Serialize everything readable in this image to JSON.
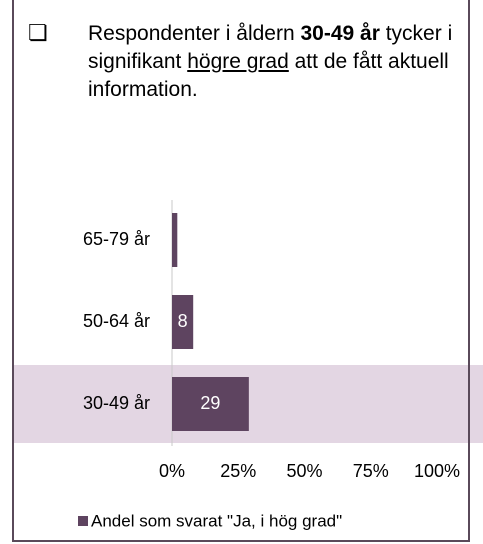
{
  "header": {
    "runs": [
      {
        "text": "Respondenter i åldern ",
        "style": "normal"
      },
      {
        "text": "30-49 år",
        "style": "bold"
      },
      {
        "text": " tycker i signifikant ",
        "style": "normal"
      },
      {
        "text": "högre grad",
        "style": "underline"
      },
      {
        "text": " att de fått aktuell information.",
        "style": "normal"
      }
    ]
  },
  "chart_data": {
    "type": "hbar",
    "categories": [
      "65-79 år",
      "50-64 år",
      "30-49 år"
    ],
    "series": [
      {
        "name": "Andel som svarat \"Ja, i hög grad\"",
        "color": "#5e4460",
        "values": [
          2,
          8,
          29
        ],
        "value_labels": [
          null,
          "8",
          "29"
        ]
      }
    ],
    "xlim": [
      0,
      100
    ],
    "xticks": [
      {
        "value": 0,
        "label": "0%"
      },
      {
        "value": 25,
        "label": "25%"
      },
      {
        "value": 50,
        "label": "50%"
      },
      {
        "value": 75,
        "label": "75%"
      },
      {
        "value": 100,
        "label": "100%"
      }
    ],
    "highlight_category": "30-49 år",
    "highlight_color": "#e3d6e3",
    "legend": "bottom"
  }
}
